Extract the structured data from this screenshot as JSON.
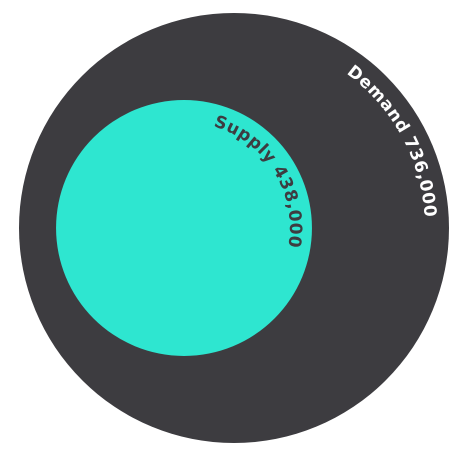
{
  "chart_data": {
    "type": "circle",
    "categories": [
      "Demand",
      "Supply"
    ],
    "values": [
      736000,
      438000
    ],
    "value_labels": [
      "736,000",
      "438,000"
    ],
    "colors": [
      "#3d3c40",
      "#2ee6d0"
    ],
    "label_colors": [
      "#ffffff",
      "#3d3c40"
    ]
  }
}
